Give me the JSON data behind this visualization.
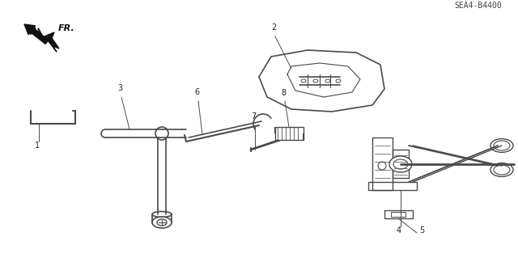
{
  "bg_color": "#ffffff",
  "line_color": "#4a4a4a",
  "fig_width": 6.4,
  "fig_height": 3.19,
  "dpi": 100,
  "diagram_code": "SEA4-B4400",
  "fr_label": "FR."
}
